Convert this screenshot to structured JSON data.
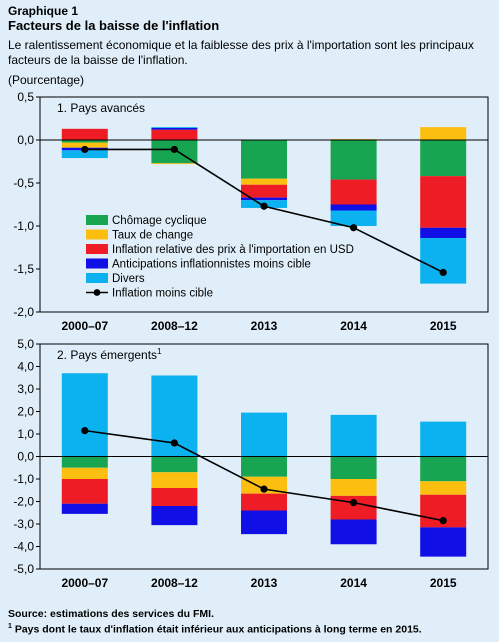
{
  "header": {
    "label": "Graphique 1",
    "title": "Facteurs de la baisse de l'inflation",
    "subtitle": "Le ralentissement économique et la faiblesse des prix à l'importation sont les principaux facteurs de la baisse de l'inflation.",
    "unit": "(Pourcentage)"
  },
  "footer": {
    "source": "Source: estimations des services du FMI.",
    "footnote_marker": "1",
    "footnote": " Pays dont le taux d'inflation était inférieur aux anticipations à long terme en 2015."
  },
  "colors": {
    "chomage": "#18a551",
    "change": "#fcbf10",
    "import": "#ee1c24",
    "anticipations": "#0f0fe6",
    "divers": "#0cb1ef",
    "line": "#000000",
    "gridline": "#ffffff"
  },
  "chart_data": [
    {
      "type": "bar",
      "stacked": true,
      "title": "1. Pays avancés",
      "categories": [
        "2000–07",
        "2008–12",
        "2013",
        "2014",
        "2015"
      ],
      "ylim": [
        -2.0,
        0.5
      ],
      "yticks": [
        "0,5",
        "0,0",
        "-0,5",
        "-1,0",
        "-1,5",
        "-2,0"
      ],
      "grid": false,
      "legend": "bottom-left",
      "series": [
        {
          "name": "Chômage cyclique",
          "color_key": "chomage",
          "values": [
            -0.03,
            -0.27,
            -0.45,
            -0.46,
            -0.42
          ]
        },
        {
          "name": "Taux de change",
          "color_key": "change",
          "values": [
            -0.06,
            -0.01,
            -0.07,
            0.01,
            0.15
          ]
        },
        {
          "name": "Inflation relative des prix à l'importation en USD",
          "color_key": "import",
          "values": [
            0.13,
            0.12,
            -0.15,
            -0.29,
            -0.6
          ]
        },
        {
          "name": "Anticipations inflationnistes moins cible",
          "color_key": "anticipations",
          "values": [
            -0.03,
            0.02,
            -0.03,
            -0.07,
            -0.12
          ]
        },
        {
          "name": "Divers",
          "color_key": "divers",
          "values": [
            -0.09,
            0.01,
            -0.09,
            -0.18,
            -0.53
          ]
        }
      ],
      "line": {
        "name": "Inflation moins cible",
        "values": [
          -0.11,
          -0.11,
          -0.77,
          -1.02,
          -1.54
        ]
      }
    },
    {
      "type": "bar",
      "stacked": true,
      "title": "2. Pays émergents",
      "title_sup": "1",
      "categories": [
        "2000–07",
        "2008–12",
        "2013",
        "2014",
        "2015"
      ],
      "ylim": [
        -5.0,
        5.0
      ],
      "yticks": [
        "5,0",
        "4,0",
        "3,0",
        "2,0",
        "1,0",
        "0,0",
        "-1,0",
        "-2,0",
        "-3,0",
        "-4,0",
        "-5,0"
      ],
      "grid": false,
      "series": [
        {
          "name": "Chômage cyclique",
          "values": [
            -0.5,
            -0.7,
            -0.9,
            -1.0,
            -1.1
          ]
        },
        {
          "name": "Taux de change",
          "values": [
            -0.5,
            -0.7,
            -0.75,
            -0.75,
            -0.6
          ]
        },
        {
          "name": "Inflation relative des prix à l'importation en USD",
          "values": [
            -1.1,
            -0.8,
            -0.75,
            -1.05,
            -1.45
          ]
        },
        {
          "name": "Anticipations inflationnistes moins cible",
          "values": [
            -0.45,
            -0.85,
            -1.05,
            -1.1,
            -1.3
          ]
        },
        {
          "name": "Divers",
          "values": [
            3.7,
            3.6,
            1.95,
            1.85,
            1.55
          ]
        }
      ],
      "line": {
        "name": "Inflation moins cible",
        "values": [
          1.15,
          0.6,
          -1.45,
          -2.05,
          -2.85
        ]
      }
    }
  ]
}
